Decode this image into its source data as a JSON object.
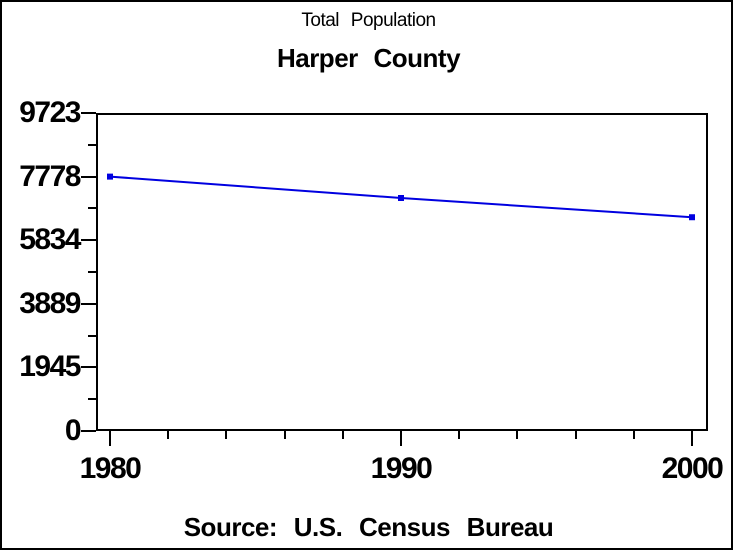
{
  "chart_data": {
    "type": "line",
    "title": "Total Population",
    "subtitle": "Harper County",
    "footer": "Source: U.S. Census Bureau",
    "x": [
      1980,
      1990,
      2000
    ],
    "series": [
      {
        "name": "Total Population",
        "values": [
          7778,
          7124,
          6536
        ]
      }
    ],
    "xlim": [
      1980,
      2000
    ],
    "ylim": [
      0,
      9723
    ],
    "x_tick_values": [
      1980,
      1990,
      2000
    ],
    "x_tick_labels": [
      "1980",
      "1990",
      "2000"
    ],
    "x_minor_step": 2,
    "y_tick_values": [
      0,
      1945,
      3889,
      5834,
      7778,
      9723
    ],
    "y_tick_labels": [
      "0",
      "1945",
      "3889",
      "5834",
      "7778",
      "9723"
    ],
    "y_minor_divisions": 2,
    "grid": "off",
    "legend": "none",
    "marker": "square",
    "line_color": "#0000E0",
    "axis_color": "#000000",
    "text_color": "#000000",
    "background": "#FFFFFF"
  }
}
